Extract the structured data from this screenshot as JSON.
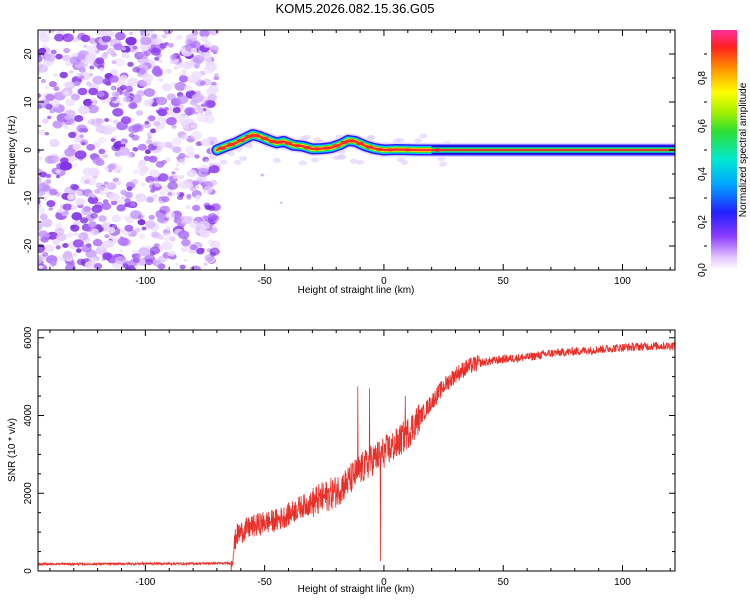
{
  "title": "KOM5.2026.082.15.36.G05",
  "chart_data": [
    {
      "type": "heatmap",
      "xlabel": "Height of straight line (km)",
      "ylabel": "Frequency (Hz)",
      "xlim": [
        -145,
        122
      ],
      "ylim": [
        -25,
        25
      ],
      "xticks": [
        -100,
        -50,
        0,
        50,
        100
      ],
      "xtick_labels": [
        "-100",
        "-50",
        "0",
        "50",
        "100"
      ],
      "yticks": [
        -20,
        -10,
        0,
        10,
        20
      ],
      "ytick_labels": [
        "-20",
        "-10",
        "0",
        "10",
        "20"
      ],
      "noise_region_x": [
        -145,
        -70
      ],
      "signal_start_x": -70,
      "ridge": {
        "x": [
          -70,
          -66,
          -62,
          -58,
          -55,
          -52,
          -48,
          -45,
          -42,
          -38,
          -34,
          -30,
          -26,
          -22,
          -18,
          -15,
          -12,
          -8,
          -4,
          0,
          5,
          15,
          30,
          60,
          122
        ],
        "freq": [
          0,
          0.8,
          1.5,
          2.5,
          3.2,
          2.8,
          2.0,
          1.5,
          1.8,
          1.0,
          0.8,
          0.2,
          0.3,
          0.5,
          1.2,
          2.0,
          1.8,
          0.9,
          0.3,
          0.0,
          0.1,
          0.0,
          0.0,
          0.0,
          0.0
        ]
      },
      "colorbar": {
        "label": "Normalized spectral amplitude",
        "range": [
          0,
          1
        ],
        "ticks": [
          0.0,
          0.2,
          0.4,
          0.6,
          0.8
        ],
        "tick_labels": [
          "0.0",
          "0.2",
          "0.4",
          "0.6",
          "0.8"
        ]
      }
    },
    {
      "type": "line",
      "xlabel": "Height of straight line (km)",
      "ylabel": "SNR (10 * v/v)",
      "xlim": [
        -145,
        122
      ],
      "ylim": [
        0,
        6200
      ],
      "xticks": [
        -100,
        -50,
        0,
        50,
        100
      ],
      "xtick_labels": [
        "-100",
        "-50",
        "0",
        "50",
        "100"
      ],
      "yticks": [
        0,
        2000,
        4000,
        6000
      ],
      "ytick_labels": [
        "0",
        "2000",
        "4000",
        "6000"
      ],
      "series": [
        {
          "name": "SNR",
          "color": "#e8302a",
          "x": [
            -145,
            -120,
            -100,
            -80,
            -64,
            -62,
            -60,
            -55,
            -50,
            -45,
            -40,
            -35,
            -30,
            -25,
            -20,
            -15,
            -10,
            -5,
            0,
            5,
            10,
            15,
            20,
            25,
            30,
            35,
            40,
            50,
            60,
            70,
            80,
            90,
            100,
            110,
            122
          ],
          "y": [
            180,
            180,
            190,
            190,
            200,
            900,
            1000,
            1150,
            1250,
            1300,
            1450,
            1650,
            1750,
            1900,
            2050,
            2300,
            2600,
            2850,
            3050,
            3250,
            3550,
            3950,
            4350,
            4750,
            5050,
            5250,
            5350,
            5450,
            5500,
            5600,
            5650,
            5700,
            5750,
            5780,
            5800
          ]
        }
      ],
      "spikes": [
        {
          "x": -11,
          "y": 4750
        },
        {
          "x": -6,
          "y": 4700
        },
        {
          "x": -1.5,
          "y": 250
        },
        {
          "x": 9,
          "y": 4500
        }
      ]
    }
  ]
}
